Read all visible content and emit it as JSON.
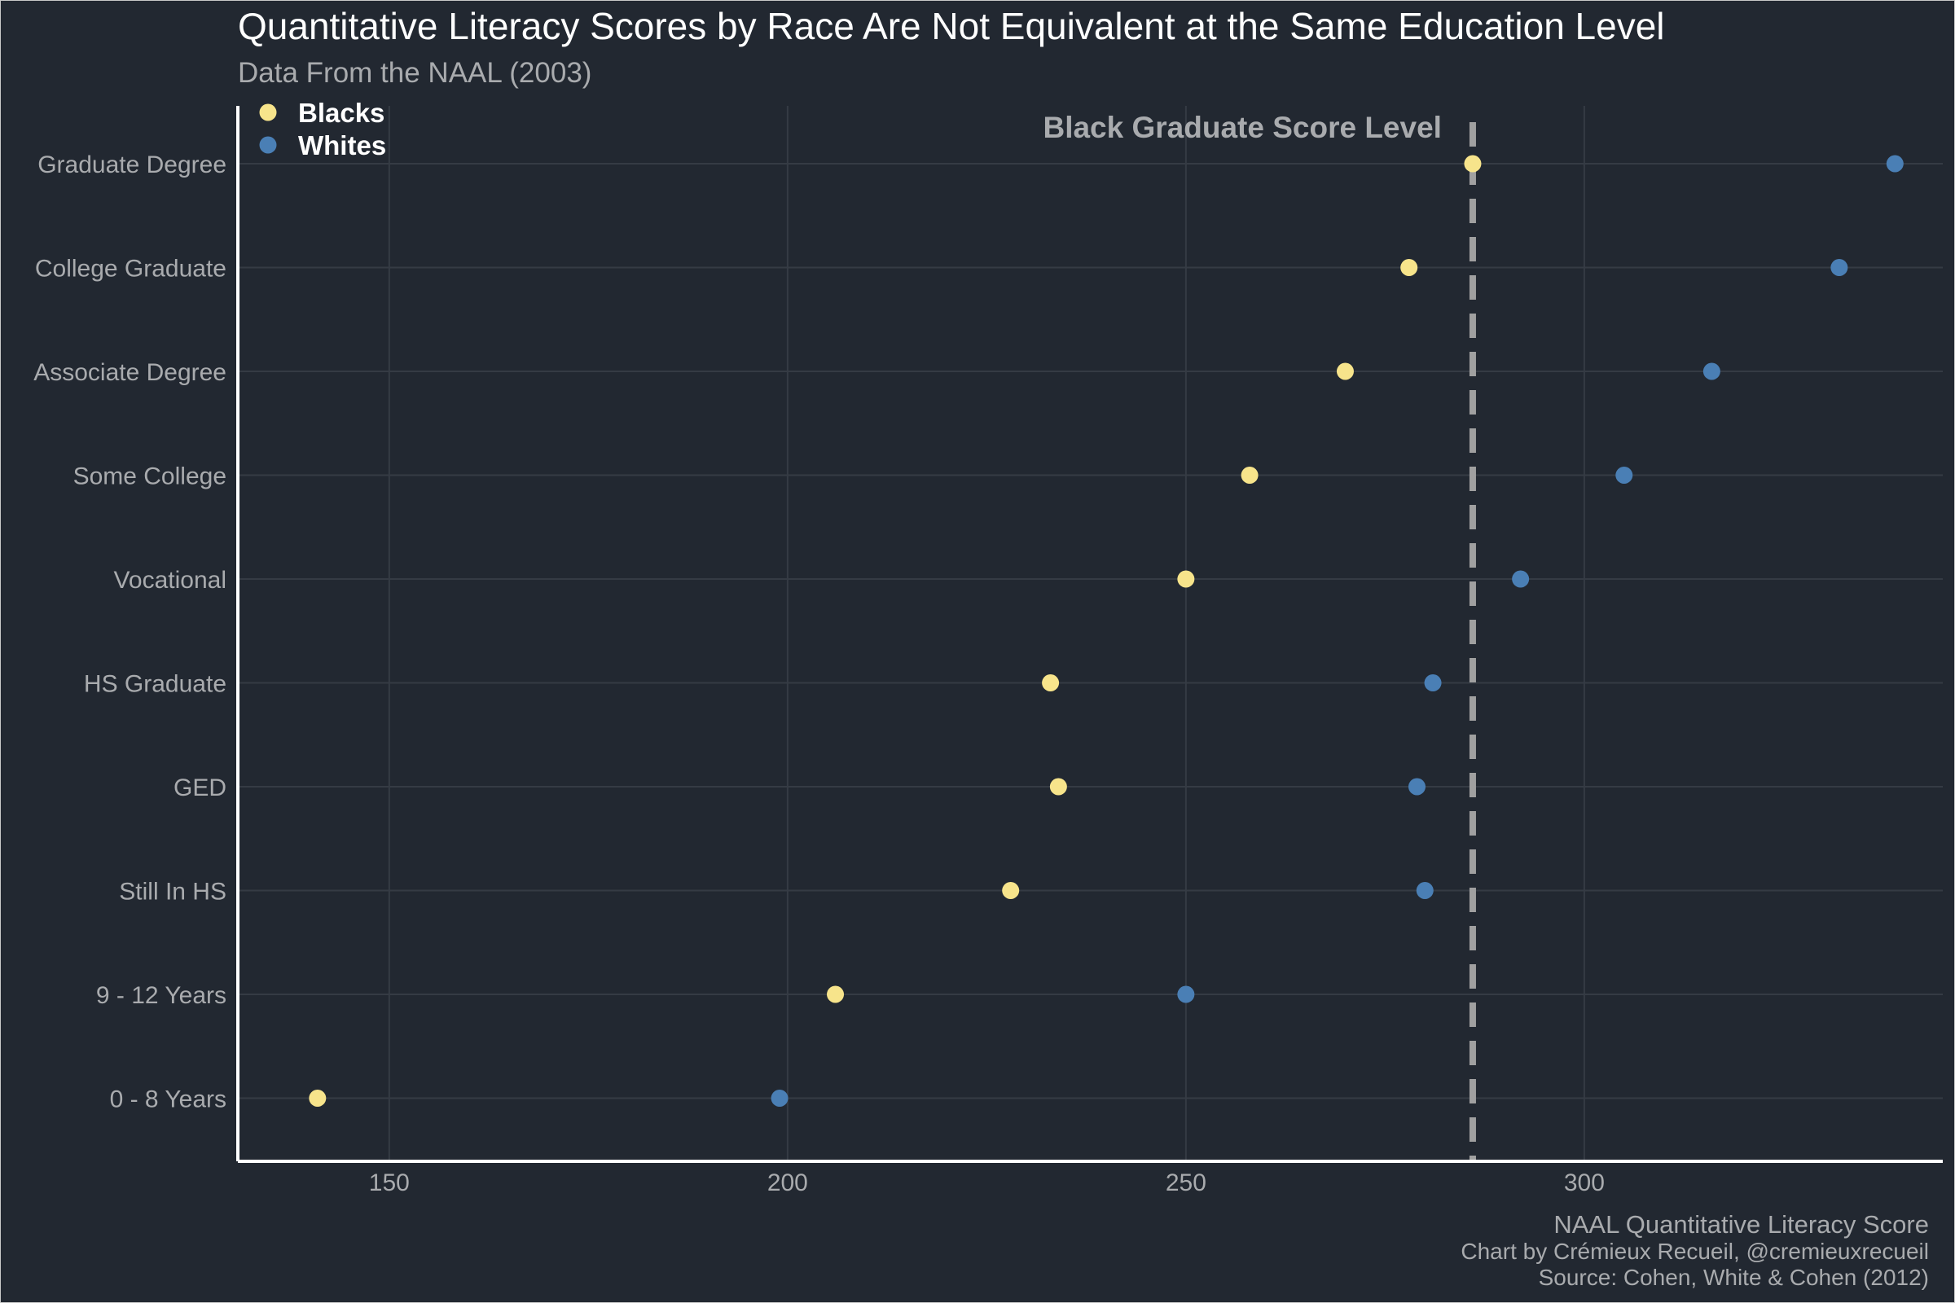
{
  "chart_data": {
    "type": "scatter",
    "title": "Quantitative Literacy Scores by Race Are Not Equivalent at the Same Education Level",
    "subtitle": "Data From the NAAL (2003)",
    "xlabel": "NAAL Quantitative Literacy Score",
    "ylabel": "",
    "caption": [
      "Chart by Crémieux Recueil, @cremieuxrecueil",
      "Source: Cohen, White & Cohen (2012)"
    ],
    "categories": [
      "Graduate Degree",
      "College Graduate",
      "Associate Degree",
      "Some College",
      "Vocational",
      "HS Graduate",
      "GED",
      "Still In HS",
      "9 - 12 Years",
      "0 - 8 Years"
    ],
    "series": [
      {
        "name": "Blacks",
        "color": "#f7e48b",
        "values": [
          286,
          278,
          270,
          258,
          250,
          233,
          234,
          228,
          206,
          141
        ]
      },
      {
        "name": "Whites",
        "color": "#4a7fb5",
        "values": [
          339,
          332,
          316,
          305,
          292,
          281,
          279,
          280,
          250,
          199
        ]
      }
    ],
    "xlim": [
      131,
      345
    ],
    "xticks": [
      150,
      200,
      250,
      300
    ],
    "xtick_labels": [
      "150",
      "200",
      "250",
      "300"
    ],
    "reference_line": {
      "value": 286,
      "label": "Black Graduate Score Level",
      "style": "dashed"
    },
    "legend_position": "top-left",
    "grid": true
  },
  "colors": {
    "background": "#222831",
    "grid": "#353b44",
    "axis": "#ffffff",
    "muted_text": "#a9abae",
    "title_text": "#ffffff",
    "reference_line": "#a0a0a0"
  }
}
